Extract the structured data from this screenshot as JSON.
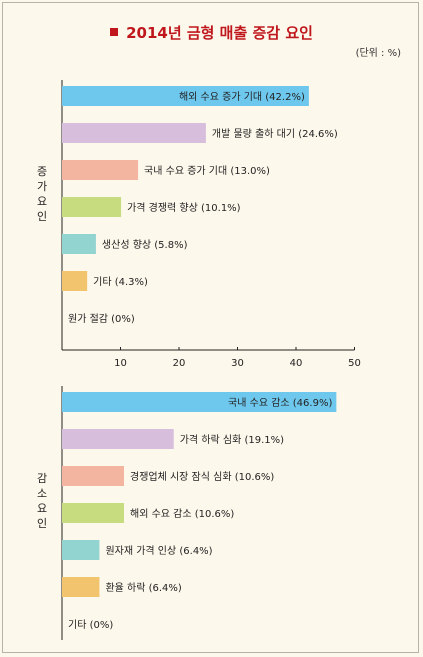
{
  "title": "2014년 금형 매출 증감 요인",
  "unit": "(단위 : %)",
  "colors": {
    "title": "#c0171d",
    "bg": "#fdf8ec",
    "bars": [
      "#6ec8ee",
      "#d8bedd",
      "#f3b4a0",
      "#c7dc7e",
      "#92d4d0",
      "#f2c46d",
      "#cccccc"
    ]
  },
  "chart_data": [
    {
      "type": "bar",
      "orientation": "horizontal",
      "group_label": "증가요인",
      "categories": [
        "해외 수요 증가 기대",
        "개발 물량 출하 대기",
        "국내 수요 증가 기대",
        "가격 경쟁력 향상",
        "생산성 향상",
        "기타",
        "원가 절감"
      ],
      "values": [
        42.2,
        24.6,
        13.0,
        10.1,
        5.8,
        4.3,
        0
      ],
      "labels": [
        "해외 수요 증가 기대 (42.2%)",
        "개발 물량 출하 대기 (24.6%)",
        "국내 수요 증가 기대 (13.0%)",
        "가격 경쟁력 향상 (10.1%)",
        "생산성 향상 (5.8%)",
        "기타 (4.3%)",
        "원가 절감 (0%)"
      ],
      "xlim": [
        0,
        50
      ],
      "xticks": [
        "10",
        "20",
        "30",
        "40",
        "50"
      ]
    },
    {
      "type": "bar",
      "orientation": "horizontal",
      "group_label": "감소요인",
      "categories": [
        "국내 수요 감소",
        "가격 하락 심화",
        "경쟁업체 시장 잠식 심화",
        "해외 수요 감소",
        "원자재 가격 인상",
        "환율 하락",
        "기타"
      ],
      "values": [
        46.9,
        19.1,
        10.6,
        10.6,
        6.4,
        6.4,
        0
      ],
      "labels": [
        "국내 수요 감소 (46.9%)",
        "가격 하락 심화 (19.1%)",
        "경쟁업체 시장 잠식 심화 (10.6%)",
        "해외 수요 감소 (10.6%)",
        "원자재 가격 인상 (6.4%)",
        "환율 하락 (6.4%)",
        "기타 (0%)"
      ],
      "xlim": [
        0,
        50
      ]
    }
  ]
}
